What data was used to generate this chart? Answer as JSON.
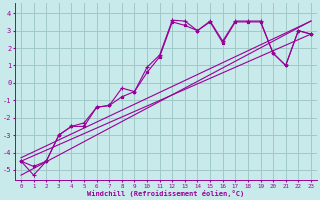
{
  "xlabel": "Windchill (Refroidissement éolien,°C)",
  "bg_color": "#c8eaea",
  "grid_color": "#a0c8c8",
  "line_color": "#990099",
  "xlim": [
    -0.5,
    23.5
  ],
  "ylim": [
    -5.6,
    4.6
  ],
  "yticks": [
    -5,
    -4,
    -3,
    -2,
    -1,
    0,
    1,
    2,
    3,
    4
  ],
  "xticks": [
    0,
    1,
    2,
    3,
    4,
    5,
    6,
    7,
    8,
    9,
    10,
    11,
    12,
    13,
    14,
    15,
    16,
    17,
    18,
    19,
    20,
    21,
    22,
    23
  ],
  "series1_x": [
    0,
    1,
    2,
    3,
    4,
    5,
    6,
    7,
    8,
    9,
    10,
    11,
    12,
    13,
    14,
    15,
    16,
    17,
    18,
    19,
    20,
    21,
    22,
    23
  ],
  "series1_y": [
    -4.5,
    -5.3,
    -4.5,
    -3.0,
    -2.5,
    -2.3,
    -1.4,
    -1.3,
    -0.3,
    -0.5,
    0.9,
    1.6,
    3.6,
    3.55,
    3.0,
    3.55,
    2.4,
    3.55,
    3.55,
    3.55,
    1.7,
    1.0,
    3.0,
    2.8
  ],
  "series2_x": [
    0,
    1,
    2,
    3,
    4,
    5,
    6,
    7,
    8,
    9,
    10,
    11,
    12,
    13,
    14,
    15,
    16,
    17,
    18,
    19,
    20,
    21,
    22,
    23
  ],
  "series2_y": [
    -4.5,
    -4.8,
    -4.5,
    -3.0,
    -2.5,
    -2.5,
    -1.4,
    -1.3,
    -0.8,
    -0.5,
    0.6,
    1.5,
    3.5,
    3.3,
    3.0,
    3.5,
    2.3,
    3.5,
    3.5,
    3.5,
    1.7,
    1.0,
    3.0,
    2.8
  ],
  "line1_x": [
    0,
    23
  ],
  "line1_y": [
    -4.5,
    2.8
  ],
  "line2_x": [
    0,
    23
  ],
  "line2_y": [
    -4.3,
    3.55
  ],
  "line3_x": [
    0,
    23
  ],
  "line3_y": [
    -5.3,
    3.55
  ]
}
